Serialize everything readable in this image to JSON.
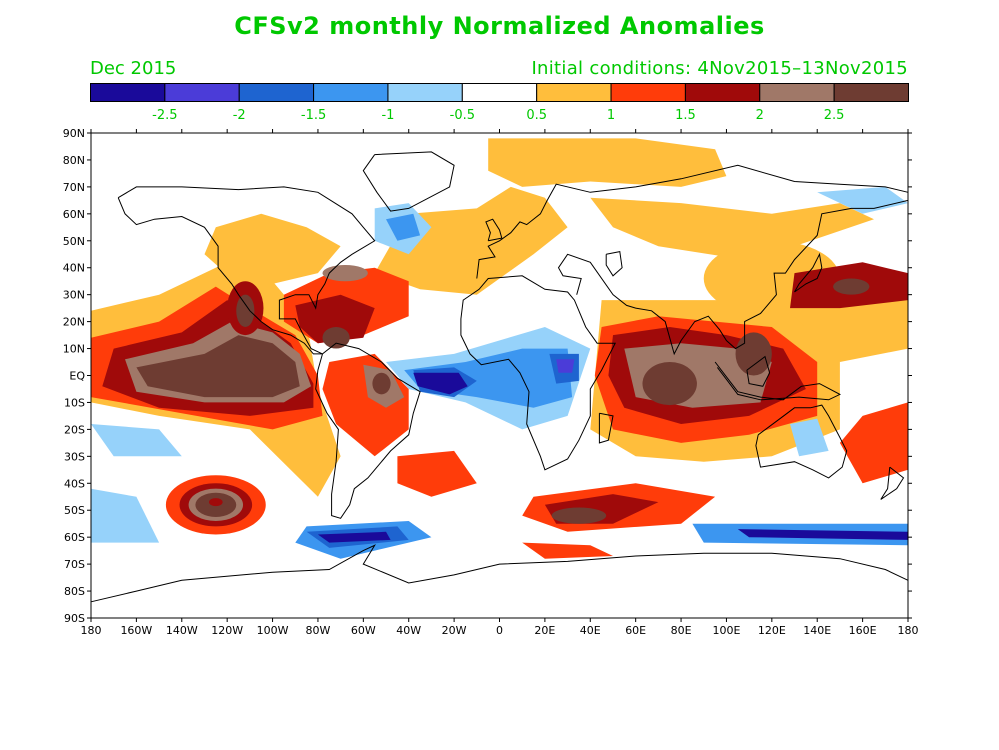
{
  "title": "CFSv2 monthly Normalized Anomalies",
  "valid_month": "Dec 2015",
  "initial_conditions": "Initial conditions: 4Nov2015–13Nov2015",
  "legend": {
    "colors": [
      "#1a0a9a",
      "#4b3cd8",
      "#1e64d0",
      "#3c96f0",
      "#96d2fa",
      "#ffffff",
      "#ffbe3c",
      "#ff3c0a",
      "#a00a0a",
      "#a07868",
      "#6e3c32"
    ],
    "labels": [
      "-2.5",
      "-2",
      "-1.5",
      "-1",
      "-0.5",
      "0.5",
      "1",
      "1.5",
      "2",
      "2.5"
    ]
  },
  "axes": {
    "lat_labels": [
      "90N",
      "80N",
      "70N",
      "60N",
      "50N",
      "40N",
      "30N",
      "20N",
      "10N",
      "EQ",
      "10S",
      "20S",
      "30S",
      "40S",
      "50S",
      "60S",
      "70S",
      "80S",
      "90S"
    ],
    "lon_labels": [
      "180",
      "160W",
      "140W",
      "120W",
      "100W",
      "80W",
      "60W",
      "40W",
      "20W",
      "0",
      "20E",
      "40E",
      "60E",
      "80E",
      "100E",
      "120E",
      "140E",
      "160E",
      "180"
    ]
  },
  "colors": {
    "text_accent": "#00c800"
  }
}
